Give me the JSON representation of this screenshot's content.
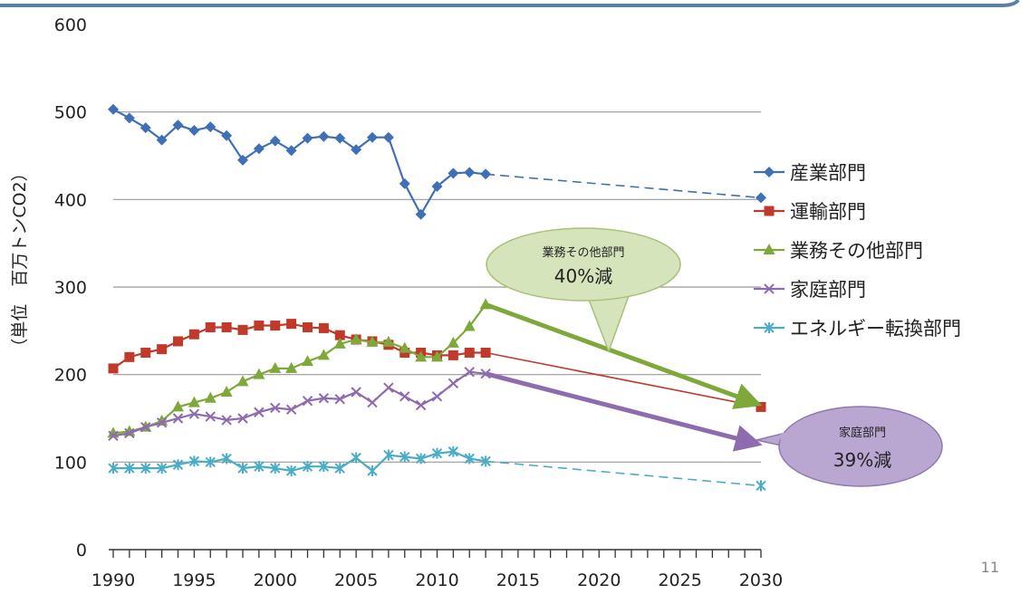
{
  "page_number": "11",
  "chart_data": {
    "type": "line",
    "ylabel": "（単位　百万トンCO2）",
    "xlim": [
      1990,
      2030
    ],
    "ylim": [
      0,
      600
    ],
    "x_ticks": [
      1990,
      1995,
      2000,
      2005,
      2010,
      2015,
      2020,
      2025,
      2030
    ],
    "y_ticks": [
      0,
      100,
      200,
      300,
      400,
      500,
      600
    ],
    "grid": true,
    "legend": "right",
    "series": [
      {
        "name": "産業部門",
        "color": "#3F6FB5",
        "marker": "diamond",
        "x": [
          1990,
          1991,
          1992,
          1993,
          1994,
          1995,
          1996,
          1997,
          1998,
          1999,
          2000,
          2001,
          2002,
          2003,
          2004,
          2005,
          2006,
          2007,
          2008,
          2009,
          2010,
          2011,
          2012,
          2013
        ],
        "values": [
          503,
          493,
          482,
          468,
          485,
          479,
          483,
          473,
          445,
          458,
          467,
          456,
          470,
          472,
          470,
          457,
          471,
          471,
          418,
          383,
          415,
          430,
          431,
          429
        ],
        "target_x": 2030,
        "target_value": 402
      },
      {
        "name": "運輸部門",
        "color": "#C0392B",
        "marker": "square",
        "x": [
          1990,
          1991,
          1992,
          1993,
          1994,
          1995,
          1996,
          1997,
          1998,
          1999,
          2000,
          2001,
          2002,
          2003,
          2004,
          2005,
          2006,
          2007,
          2008,
          2009,
          2010,
          2011,
          2012,
          2013
        ],
        "values": [
          207,
          220,
          225,
          229,
          238,
          246,
          254,
          254,
          251,
          256,
          256,
          258,
          254,
          253,
          245,
          240,
          238,
          234,
          225,
          225,
          222,
          222,
          225,
          225
        ],
        "target_x": 2030,
        "target_value": 163
      },
      {
        "name": "業務その他部門",
        "color": "#7FA83B",
        "marker": "triangle",
        "x": [
          1990,
          1991,
          1992,
          1993,
          1994,
          1995,
          1996,
          1997,
          1998,
          1999,
          2000,
          2001,
          2002,
          2003,
          2004,
          2005,
          2006,
          2007,
          2008,
          2009,
          2010,
          2011,
          2012,
          2013
        ],
        "values": [
          133,
          135,
          140,
          147,
          163,
          168,
          173,
          180,
          192,
          200,
          207,
          207,
          215,
          222,
          235,
          240,
          237,
          237,
          230,
          220,
          220,
          236,
          255,
          280
        ],
        "target_x": 2030,
        "target_value": 168
      },
      {
        "name": "家庭部門",
        "color": "#8E6BAF",
        "marker": "x",
        "x": [
          1990,
          1991,
          1992,
          1993,
          1994,
          1995,
          1996,
          1997,
          1998,
          1999,
          2000,
          2001,
          2002,
          2003,
          2004,
          2005,
          2006,
          2007,
          2008,
          2009,
          2010,
          2011,
          2012,
          2013
        ],
        "values": [
          130,
          133,
          140,
          145,
          150,
          155,
          152,
          148,
          150,
          157,
          162,
          160,
          170,
          173,
          172,
          180,
          168,
          185,
          175,
          165,
          175,
          190,
          203,
          201
        ],
        "target_x": 2030,
        "target_value": 122
      },
      {
        "name": "エネルギー転換部門",
        "color": "#4BACC6",
        "marker": "star",
        "x": [
          1990,
          1991,
          1992,
          1993,
          1994,
          1995,
          1996,
          1997,
          1998,
          1999,
          2000,
          2001,
          2002,
          2003,
          2004,
          2005,
          2006,
          2007,
          2008,
          2009,
          2010,
          2011,
          2012,
          2013
        ],
        "values": [
          93,
          93,
          93,
          93,
          97,
          101,
          100,
          104,
          93,
          95,
          93,
          90,
          95,
          95,
          93,
          105,
          90,
          108,
          106,
          104,
          110,
          112,
          104,
          101
        ],
        "target_x": 2030,
        "target_value": 73
      }
    ],
    "annotations": [
      {
        "series": "業務その他部門",
        "label": "業務その他部門",
        "value": "40%減",
        "color": "#D6E4BC",
        "border": "#A8C078"
      },
      {
        "series": "家庭部門",
        "label": "家庭部門",
        "value": "39%減",
        "color": "#B9A7D1",
        "border": "#8E7AB0"
      }
    ]
  }
}
